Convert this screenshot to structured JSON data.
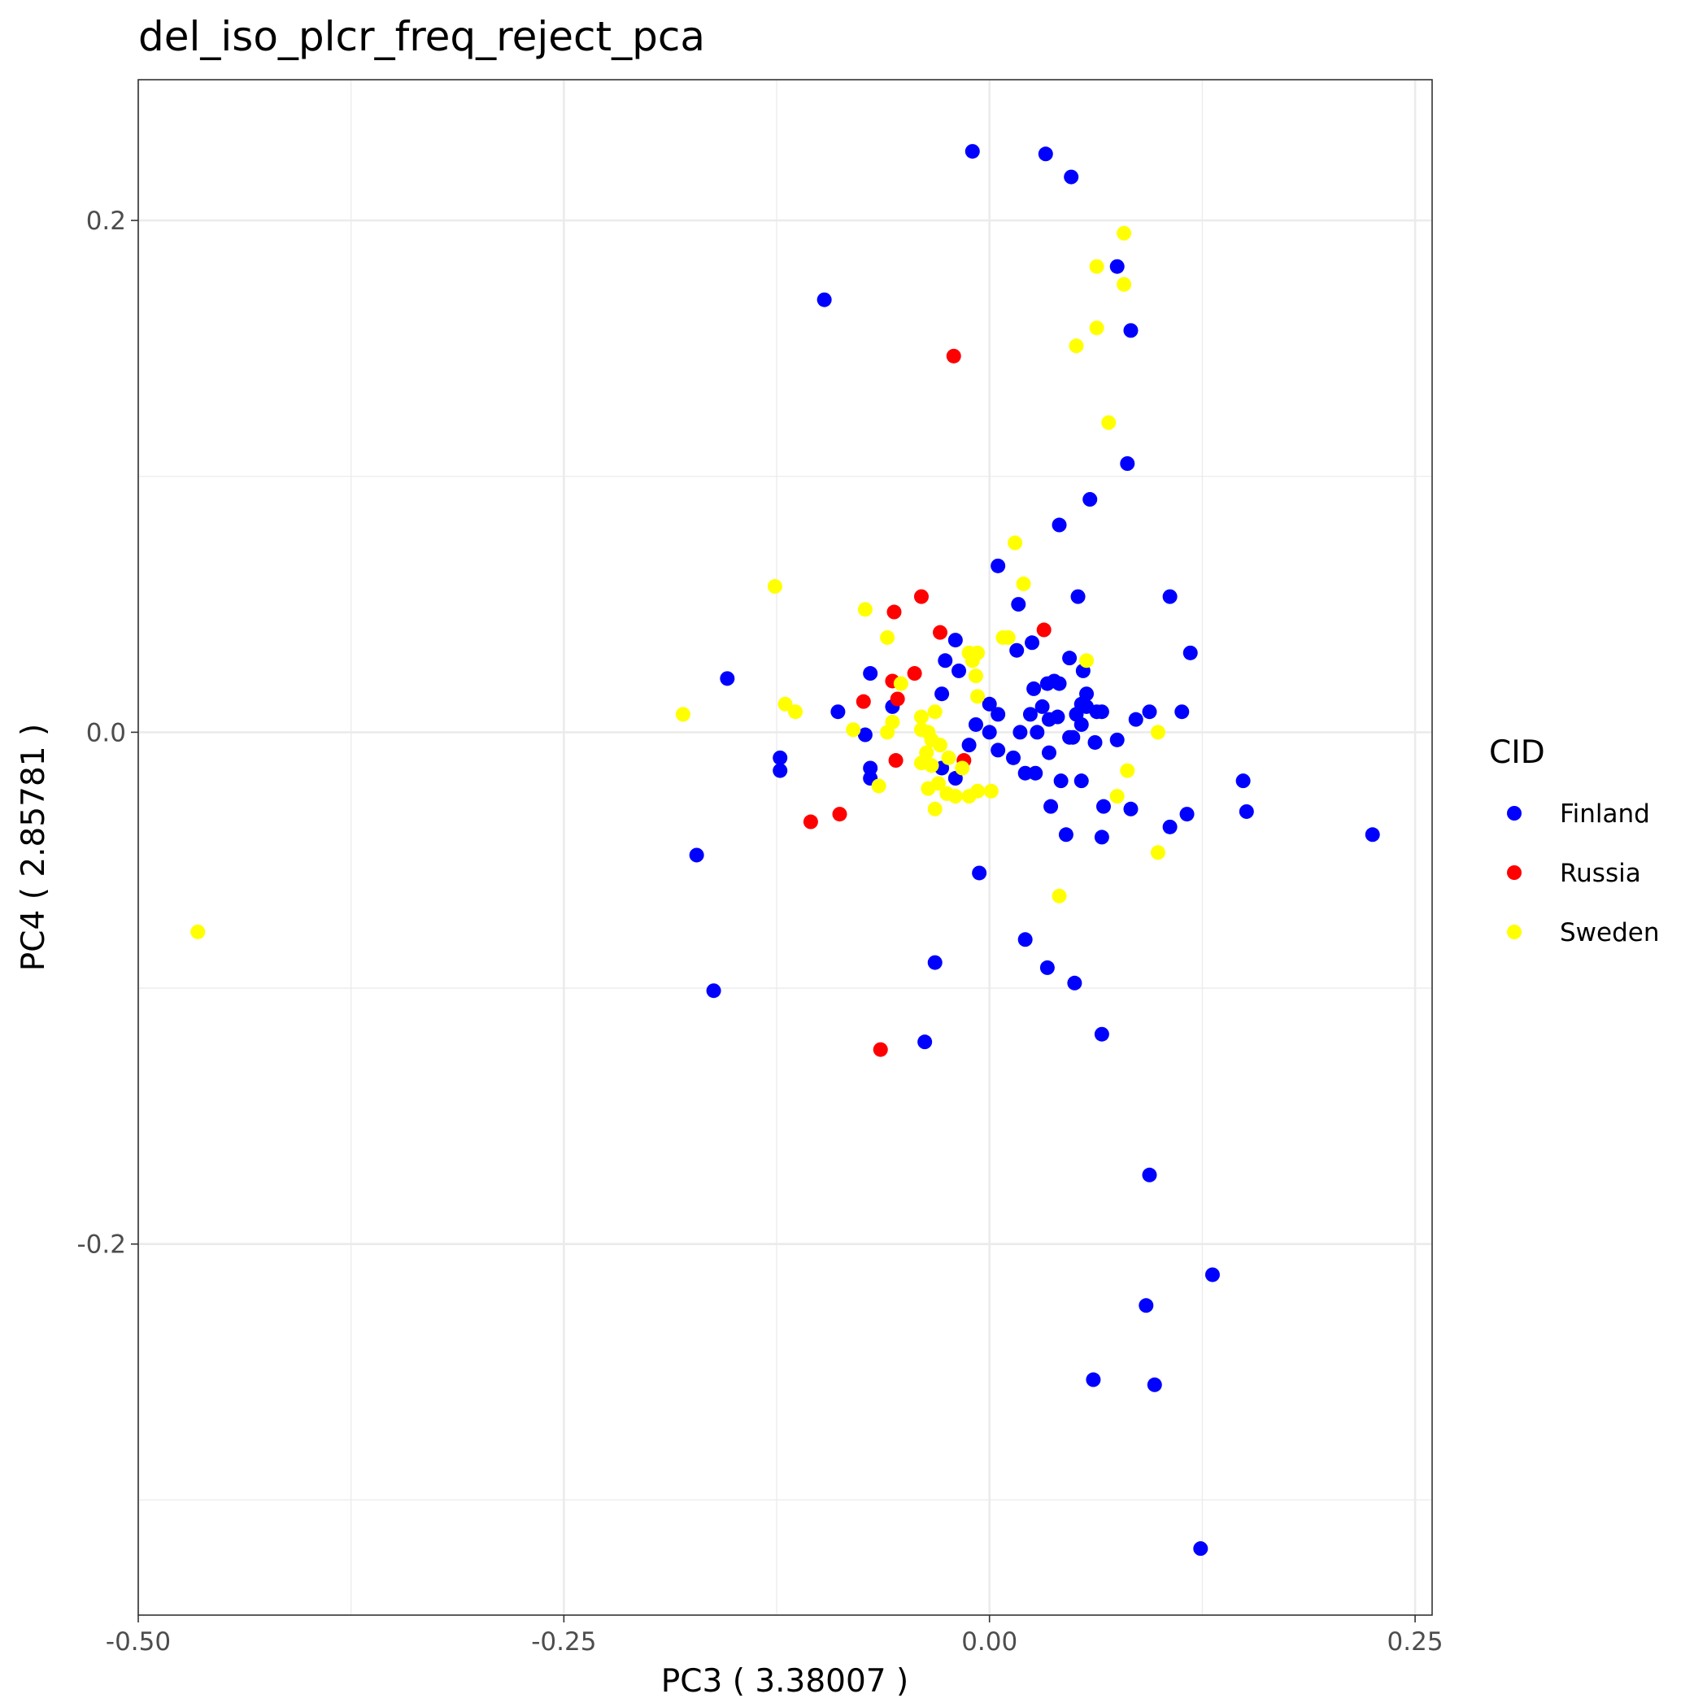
{
  "chart_data": {
    "type": "scatter",
    "title": "del_iso_plcr_freq_reject_pca",
    "xlabel": "PC3 ( 3.38007 )",
    "ylabel": "PC4 ( 2.85781 )",
    "xlim": [
      -0.5,
      0.26
    ],
    "ylim": [
      -0.345,
      0.255
    ],
    "x_ticks": [
      -0.5,
      -0.25,
      0.0,
      0.25
    ],
    "x_tick_labels": [
      "-0.50",
      "-0.25",
      "0.00",
      "0.25"
    ],
    "y_ticks": [
      -0.2,
      0.0,
      0.2
    ],
    "y_tick_labels": [
      "-0.2",
      "0.0",
      "0.2"
    ],
    "grid": true,
    "legend": {
      "title": "CID",
      "position": "right"
    },
    "series": [
      {
        "name": "Finland",
        "color": "#0000FF",
        "points": [
          [
            -0.01,
            0.227
          ],
          [
            0.033,
            0.226
          ],
          [
            0.048,
            0.217
          ],
          [
            0.075,
            0.182
          ],
          [
            -0.097,
            0.169
          ],
          [
            0.083,
            0.157
          ],
          [
            0.081,
            0.105
          ],
          [
            0.059,
            0.091
          ],
          [
            0.041,
            0.081
          ],
          [
            0.005,
            0.065
          ],
          [
            0.017,
            0.05
          ],
          [
            0.052,
            0.053
          ],
          [
            0.106,
            0.053
          ],
          [
            -0.02,
            0.036
          ],
          [
            0.025,
            0.035
          ],
          [
            0.016,
            0.032
          ],
          [
            0.118,
            0.031
          ],
          [
            -0.026,
            0.028
          ],
          [
            0.047,
            0.029
          ],
          [
            -0.018,
            0.024
          ],
          [
            0.055,
            0.024
          ],
          [
            -0.07,
            0.023
          ],
          [
            -0.154,
            0.021
          ],
          [
            0.038,
            0.02
          ],
          [
            0.034,
            0.019
          ],
          [
            0.041,
            0.019
          ],
          [
            0.026,
            0.017
          ],
          [
            -0.028,
            0.015
          ],
          [
            0.057,
            0.015
          ],
          [
            -0.057,
            0.01
          ],
          [
            0.031,
            0.01
          ],
          [
            0.0,
            0.011
          ],
          [
            0.054,
            0.011
          ],
          [
            0.057,
            0.01
          ],
          [
            -0.089,
            0.008
          ],
          [
            0.005,
            0.007
          ],
          [
            0.024,
            0.007
          ],
          [
            0.051,
            0.007
          ],
          [
            0.063,
            0.008
          ],
          [
            0.066,
            0.008
          ],
          [
            0.094,
            0.008
          ],
          [
            0.113,
            0.008
          ],
          [
            0.04,
            0.006
          ],
          [
            0.035,
            0.005
          ],
          [
            0.086,
            0.005
          ],
          [
            -0.008,
            0.003
          ],
          [
            0.054,
            0.003
          ],
          [
            0.0,
            0.0
          ],
          [
            -0.073,
            -0.001
          ],
          [
            0.018,
            0.0
          ],
          [
            0.028,
            0.0
          ],
          [
            0.047,
            -0.002
          ],
          [
            0.049,
            -0.002
          ],
          [
            0.075,
            -0.003
          ],
          [
            0.062,
            -0.004
          ],
          [
            -0.012,
            -0.005
          ],
          [
            0.005,
            -0.007
          ],
          [
            0.035,
            -0.008
          ],
          [
            0.014,
            -0.01
          ],
          [
            -0.123,
            -0.01
          ],
          [
            -0.123,
            -0.015
          ],
          [
            -0.07,
            -0.014
          ],
          [
            -0.028,
            -0.014
          ],
          [
            0.021,
            -0.016
          ],
          [
            0.027,
            -0.016
          ],
          [
            -0.07,
            -0.018
          ],
          [
            -0.02,
            -0.018
          ],
          [
            0.042,
            -0.019
          ],
          [
            0.054,
            -0.019
          ],
          [
            0.149,
            -0.019
          ],
          [
            0.036,
            -0.029
          ],
          [
            0.067,
            -0.029
          ],
          [
            0.083,
            -0.03
          ],
          [
            0.151,
            -0.031
          ],
          [
            0.116,
            -0.032
          ],
          [
            0.106,
            -0.037
          ],
          [
            0.045,
            -0.04
          ],
          [
            0.066,
            -0.041
          ],
          [
            0.225,
            -0.04
          ],
          [
            -0.172,
            -0.048
          ],
          [
            -0.006,
            -0.055
          ],
          [
            0.021,
            -0.081
          ],
          [
            -0.032,
            -0.09
          ],
          [
            0.034,
            -0.092
          ],
          [
            0.05,
            -0.098
          ],
          [
            -0.162,
            -0.101
          ],
          [
            0.066,
            -0.118
          ],
          [
            -0.038,
            -0.121
          ],
          [
            0.094,
            -0.173
          ],
          [
            0.131,
            -0.212
          ],
          [
            0.092,
            -0.224
          ],
          [
            0.061,
            -0.253
          ],
          [
            0.097,
            -0.255
          ],
          [
            0.124,
            -0.319
          ]
        ]
      },
      {
        "name": "Russia",
        "color": "#FF0000",
        "points": [
          [
            -0.021,
            0.147
          ],
          [
            -0.04,
            0.053
          ],
          [
            -0.056,
            0.047
          ],
          [
            -0.029,
            0.039
          ],
          [
            0.032,
            0.04
          ],
          [
            -0.044,
            0.023
          ],
          [
            -0.057,
            0.02
          ],
          [
            -0.074,
            0.012
          ],
          [
            -0.054,
            0.013
          ],
          [
            -0.055,
            -0.011
          ],
          [
            -0.015,
            -0.011
          ],
          [
            -0.088,
            -0.032
          ],
          [
            -0.105,
            -0.035
          ],
          [
            -0.064,
            -0.124
          ]
        ]
      },
      {
        "name": "Sweden",
        "color": "#FFFF00",
        "points": [
          [
            0.079,
            0.195
          ],
          [
            0.063,
            0.182
          ],
          [
            0.079,
            0.175
          ],
          [
            0.063,
            0.158
          ],
          [
            0.051,
            0.151
          ],
          [
            0.07,
            0.121
          ],
          [
            0.015,
            0.074
          ],
          [
            0.02,
            0.058
          ],
          [
            -0.126,
            0.057
          ],
          [
            -0.073,
            0.048
          ],
          [
            -0.06,
            0.037
          ],
          [
            0.008,
            0.037
          ],
          [
            0.011,
            0.037
          ],
          [
            -0.012,
            0.031
          ],
          [
            -0.007,
            0.031
          ],
          [
            -0.01,
            0.028
          ],
          [
            0.057,
            0.028
          ],
          [
            -0.008,
            0.022
          ],
          [
            -0.052,
            0.019
          ],
          [
            -0.007,
            0.014
          ],
          [
            -0.12,
            0.011
          ],
          [
            -0.114,
            0.008
          ],
          [
            -0.18,
            0.007
          ],
          [
            -0.032,
            0.008
          ],
          [
            -0.04,
            0.006
          ],
          [
            -0.057,
            0.004
          ],
          [
            -0.08,
            0.001
          ],
          [
            -0.06,
            0.0
          ],
          [
            -0.036,
            0.0
          ],
          [
            -0.04,
            0.001
          ],
          [
            0.099,
            0.0
          ],
          [
            -0.034,
            -0.003
          ],
          [
            -0.029,
            -0.005
          ],
          [
            -0.037,
            -0.008
          ],
          [
            -0.024,
            -0.01
          ],
          [
            -0.04,
            -0.012
          ],
          [
            -0.034,
            -0.013
          ],
          [
            -0.016,
            -0.014
          ],
          [
            0.081,
            -0.015
          ],
          [
            -0.065,
            -0.021
          ],
          [
            -0.036,
            -0.022
          ],
          [
            -0.025,
            -0.024
          ],
          [
            -0.03,
            -0.02
          ],
          [
            -0.02,
            -0.025
          ],
          [
            -0.012,
            -0.025
          ],
          [
            -0.007,
            -0.023
          ],
          [
            0.001,
            -0.023
          ],
          [
            0.075,
            -0.025
          ],
          [
            -0.032,
            -0.03
          ],
          [
            0.099,
            -0.047
          ],
          [
            0.041,
            -0.064
          ],
          [
            -0.465,
            -0.078
          ]
        ]
      }
    ]
  }
}
